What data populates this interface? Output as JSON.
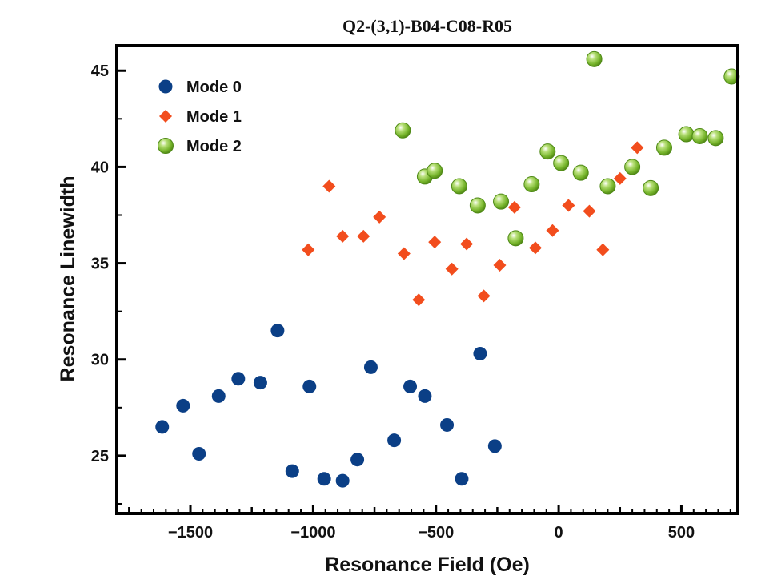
{
  "chart_data": {
    "type": "scatter",
    "title": "Q2-(3,1)-B04-C08-R05",
    "xlabel": "Resonance Field (Oe)",
    "ylabel": "Resonance Linewidth",
    "xlim": [
      -1800,
      730
    ],
    "ylim": [
      22,
      46.3
    ],
    "xticks": [
      -1500,
      -1000,
      -500,
      0,
      500
    ],
    "xtick_labels": [
      "−1500",
      "−1000",
      "−500",
      "0",
      "500"
    ],
    "yticks": [
      25,
      30,
      35,
      40,
      45
    ],
    "ytick_labels": [
      "25",
      "30",
      "35",
      "40",
      "45"
    ],
    "grid": false,
    "legend_position": "top-left",
    "series": [
      {
        "name": "Mode 0",
        "marker": "circle",
        "color": "#0b3f86",
        "points": [
          [
            -1615,
            26.5
          ],
          [
            -1530,
            27.6
          ],
          [
            -1465,
            25.1
          ],
          [
            -1385,
            28.1
          ],
          [
            -1305,
            29.0
          ],
          [
            -1215,
            28.8
          ],
          [
            -1145,
            31.5
          ],
          [
            -1085,
            24.2
          ],
          [
            -1015,
            28.6
          ],
          [
            -955,
            23.8
          ],
          [
            -880,
            23.7
          ],
          [
            -820,
            24.8
          ],
          [
            -765,
            29.6
          ],
          [
            -670,
            25.8
          ],
          [
            -605,
            28.6
          ],
          [
            -545,
            28.1
          ],
          [
            -455,
            26.6
          ],
          [
            -395,
            23.8
          ],
          [
            -320,
            30.3
          ],
          [
            -260,
            25.5
          ]
        ]
      },
      {
        "name": "Mode 1",
        "marker": "diamond",
        "color": "#f24d1d",
        "points": [
          [
            -1020,
            35.7
          ],
          [
            -935,
            39.0
          ],
          [
            -880,
            36.4
          ],
          [
            -795,
            36.4
          ],
          [
            -730,
            37.4
          ],
          [
            -630,
            35.5
          ],
          [
            -570,
            33.1
          ],
          [
            -505,
            36.1
          ],
          [
            -435,
            34.7
          ],
          [
            -375,
            36.0
          ],
          [
            -305,
            33.3
          ],
          [
            -240,
            34.9
          ],
          [
            -180,
            37.9
          ],
          [
            -95,
            35.8
          ],
          [
            -25,
            36.7
          ],
          [
            40,
            38.0
          ],
          [
            125,
            37.7
          ],
          [
            180,
            35.7
          ],
          [
            250,
            39.4
          ],
          [
            320,
            41.0
          ]
        ]
      },
      {
        "name": "Mode 2",
        "marker": "sphere",
        "color": "#7dbb2c",
        "points": [
          [
            -635,
            41.9
          ],
          [
            -545,
            39.5
          ],
          [
            -505,
            39.8
          ],
          [
            -405,
            39.0
          ],
          [
            -330,
            38.0
          ],
          [
            -235,
            38.2
          ],
          [
            -175,
            36.3
          ],
          [
            -110,
            39.1
          ],
          [
            -45,
            40.8
          ],
          [
            10,
            40.2
          ],
          [
            90,
            39.7
          ],
          [
            145,
            45.6
          ],
          [
            200,
            39.0
          ],
          [
            300,
            40.0
          ],
          [
            375,
            38.9
          ],
          [
            430,
            41.0
          ],
          [
            520,
            41.7
          ],
          [
            575,
            41.6
          ],
          [
            640,
            41.5
          ],
          [
            705,
            44.7
          ]
        ]
      }
    ]
  }
}
